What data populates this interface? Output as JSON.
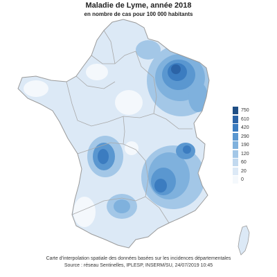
{
  "title": "Maladie de Lyme, année 2018",
  "subtitle": "en nombre de cas pour 100 000 habitants",
  "legend": {
    "levels": [
      {
        "label": "750",
        "color": "#1f4e85"
      },
      {
        "label": "610",
        "color": "#2b63a6"
      },
      {
        "label": "420",
        "color": "#3b7cc0"
      },
      {
        "label": "290",
        "color": "#5a97d0"
      },
      {
        "label": "190",
        "color": "#7fb1dd"
      },
      {
        "label": "120",
        "color": "#a3c7e7"
      },
      {
        "label": "60",
        "color": "#c2d9ef"
      },
      {
        "label": "20",
        "color": "#dce9f6"
      },
      {
        "label": "0",
        "color": "#f4f8fc"
      }
    ]
  },
  "caption": {
    "line1": "Carte d'interpolation spatiale des données basées sur les incidences départementales",
    "line2": "Source :  réseau Sentinelles, IPLESP, INSERM/SU, 24/07/2019 10:45"
  },
  "colors": {
    "background": "#ffffff",
    "border": "#a0a0a0",
    "base_fill": "#dce9f6"
  }
}
